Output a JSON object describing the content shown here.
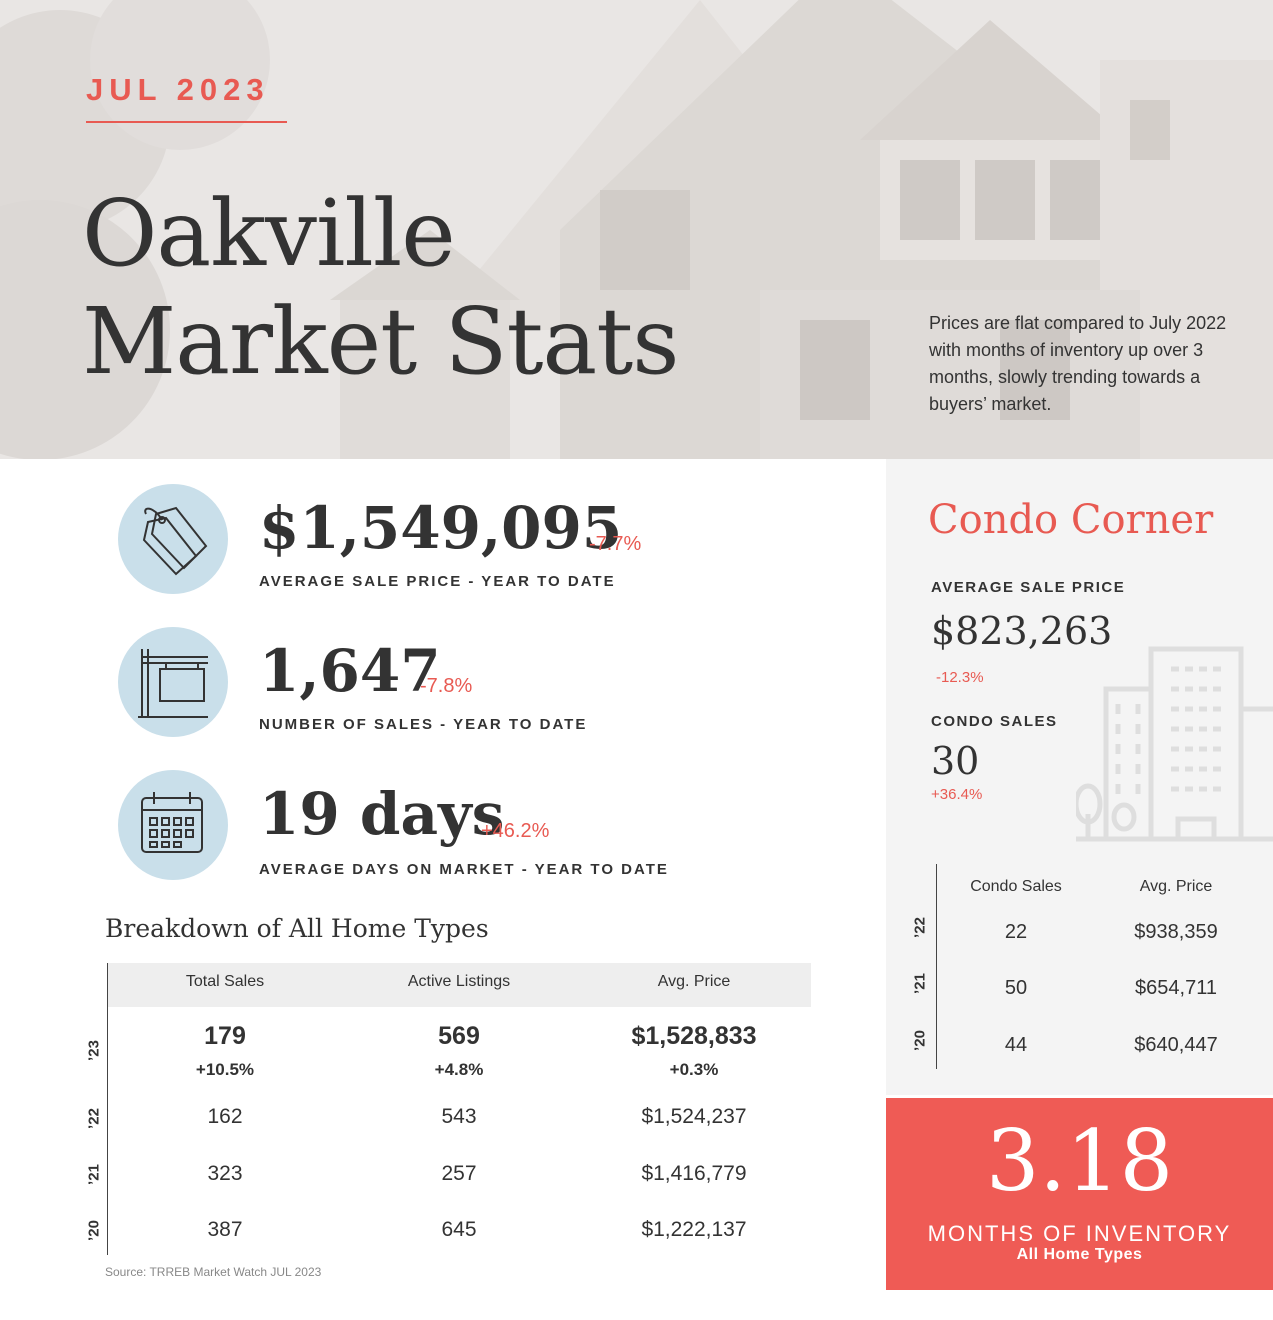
{
  "header": {
    "month": "JUL 2023",
    "title_line1": "Oakville",
    "title_line2": "Market Stats",
    "blurb": "Prices are flat compared to July 2022 with months of inventory up over 3 months, slowly trending towards a buyers’ market."
  },
  "stats": [
    {
      "value": "$1,549,095",
      "change": "-7.7%",
      "label": "AVERAGE SALE PRICE - YEAR TO DATE",
      "icon": "price-tag-icon"
    },
    {
      "value": "1,647",
      "change": "-7.8%",
      "label": "NUMBER OF SALES - YEAR TO DATE",
      "icon": "sale-sign-icon"
    },
    {
      "value": "19 days",
      "change": "+46.2%",
      "label": "AVERAGE DAYS ON MARKET - YEAR TO DATE",
      "icon": "calendar-icon"
    }
  ],
  "breakdown": {
    "title": "Breakdown of All Home Types",
    "columns": [
      "Total Sales",
      "Active Listings",
      "Avg. Price"
    ],
    "current": {
      "year": "’23",
      "values": [
        "179",
        "569",
        "$1,528,833"
      ],
      "changes": [
        "+10.5%",
        "+4.8%",
        "+0.3%"
      ]
    },
    "rows": [
      {
        "year": "’22",
        "values": [
          "162",
          "543",
          "$1,524,237"
        ]
      },
      {
        "year": "’21",
        "values": [
          "323",
          "257",
          "$1,416,779"
        ]
      },
      {
        "year": "’20",
        "values": [
          "387",
          "645",
          "$1,222,137"
        ]
      }
    ],
    "source": "Source: TRREB Market Watch JUL 2023"
  },
  "condo": {
    "title": "Condo Corner",
    "avg_label": "AVERAGE SALE PRICE",
    "avg_value": "$823,263",
    "avg_change": "-12.3%",
    "sales_label": "CONDO SALES",
    "sales_value": "30",
    "sales_change": "+36.4%",
    "columns": [
      "Condo Sales",
      "Avg. Price"
    ],
    "rows": [
      {
        "year": "’22",
        "values": [
          "22",
          "$938,359"
        ]
      },
      {
        "year": "’21",
        "values": [
          "50",
          "$654,711"
        ]
      },
      {
        "year": "’20",
        "values": [
          "44",
          "$640,447"
        ]
      }
    ]
  },
  "inventory": {
    "value": "3.18",
    "label": "MONTHS OF INVENTORY",
    "sublabel": "All Home Types"
  },
  "colors": {
    "accent": "#e85a52",
    "inventory_bg": "#ef5b55",
    "icon_circle": "#c9dfea",
    "hero_bg": "#e9e6e4",
    "panel_bg": "#f4f4f4",
    "text": "#333333"
  }
}
